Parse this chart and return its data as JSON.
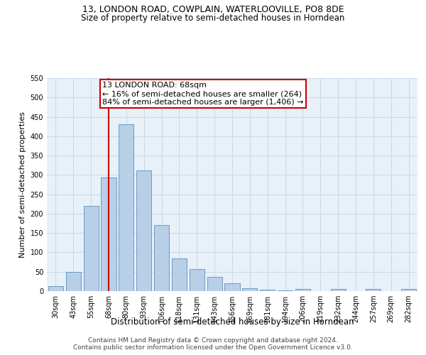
{
  "title": "13, LONDON ROAD, COWPLAIN, WATERLOOVILLE, PO8 8DE",
  "subtitle": "Size of property relative to semi-detached houses in Horndean",
  "xlabel": "Distribution of semi-detached houses by size in Horndean",
  "ylabel": "Number of semi-detached properties",
  "footer1": "Contains HM Land Registry data © Crown copyright and database right 2024.",
  "footer2": "Contains public sector information licensed under the Open Government Licence v3.0.",
  "annotation_line1": "13 LONDON ROAD: 68sqm",
  "annotation_line2": "← 16% of semi-detached houses are smaller (264)",
  "annotation_line3": "84% of semi-detached houses are larger (1,406) →",
  "property_size": 68,
  "vline_x": 3,
  "categories": [
    "30sqm",
    "43sqm",
    "55sqm",
    "68sqm",
    "80sqm",
    "93sqm",
    "106sqm",
    "118sqm",
    "131sqm",
    "143sqm",
    "156sqm",
    "169sqm",
    "181sqm",
    "194sqm",
    "206sqm",
    "219sqm",
    "232sqm",
    "244sqm",
    "257sqm",
    "269sqm",
    "282sqm"
  ],
  "values": [
    13,
    49,
    220,
    294,
    431,
    311,
    170,
    85,
    57,
    36,
    20,
    8,
    4,
    2,
    5,
    0,
    5,
    0,
    5,
    0,
    5
  ],
  "bar_color": "#b8cfe8",
  "bar_edge_color": "#5a8fc0",
  "vline_color": "#cc0000",
  "ylim": [
    0,
    550
  ],
  "yticks": [
    0,
    50,
    100,
    150,
    200,
    250,
    300,
    350,
    400,
    450,
    500,
    550
  ],
  "grid_color": "#c8d8ea",
  "background_color": "#e8f0f8",
  "box_facecolor": "#ffffff",
  "box_edgecolor": "#cc0000",
  "title_fontsize": 9,
  "subtitle_fontsize": 8.5,
  "ylabel_fontsize": 8,
  "xlabel_fontsize": 8.5,
  "tick_fontsize": 7,
  "annotation_fontsize": 8,
  "footer_fontsize": 6.5
}
